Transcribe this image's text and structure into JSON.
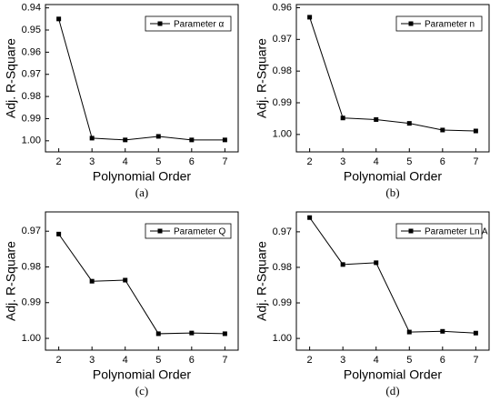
{
  "chart_data": [
    {
      "type": "line",
      "caption": "(a)",
      "xlabel": "Polynomial Order",
      "ylabel": "Adj. R-Square",
      "x": [
        2,
        3,
        4,
        5,
        6,
        7
      ],
      "xlim": [
        1.6,
        7.4
      ],
      "xticks": [
        2,
        3,
        4,
        5,
        6,
        7
      ],
      "ylim": [
        1.005,
        0.9385
      ],
      "yticks": [
        0.94,
        0.95,
        0.96,
        0.97,
        0.98,
        0.99,
        {
          "value": 1,
          "label": "1.00"
        }
      ],
      "legend": "upper right",
      "series": [
        {
          "name": "Parameter α",
          "color": "#000000",
          "values": [
            0.945,
            0.9988,
            0.9996,
            0.998,
            0.9996,
            0.9996
          ]
        }
      ]
    },
    {
      "type": "line",
      "caption": "(b)",
      "xlabel": "Polynomial Order",
      "ylabel": "Adj. R-Square",
      "x": [
        2,
        3,
        4,
        5,
        6,
        7
      ],
      "xlim": [
        1.6,
        7.4
      ],
      "xticks": [
        2,
        3,
        4,
        5,
        6,
        7
      ],
      "ylim": [
        1.0055,
        0.959
      ],
      "yticks": [
        0.96,
        0.97,
        0.98,
        0.99,
        {
          "value": 1,
          "label": "1.00"
        }
      ],
      "legend": "upper right",
      "series": [
        {
          "name": "Parameter n",
          "color": "#000000",
          "values": [
            0.963,
            0.9948,
            0.9953,
            0.9965,
            0.9986,
            0.9989
          ]
        }
      ]
    },
    {
      "type": "line",
      "caption": "(c)",
      "xlabel": "Polynomial Order",
      "ylabel": "Adj. R-Square",
      "x": [
        2,
        3,
        4,
        5,
        6,
        7
      ],
      "xlim": [
        1.6,
        7.4
      ],
      "xticks": [
        2,
        3,
        4,
        5,
        6,
        7
      ],
      "ylim": [
        1.0033,
        0.9646
      ],
      "yticks": [
        0.97,
        0.98,
        0.99,
        {
          "value": 1,
          "label": "1.00"
        }
      ],
      "legend": "upper right",
      "series": [
        {
          "name": "Parameter Q",
          "color": "#000000",
          "values": [
            0.9708,
            0.984,
            0.9837,
            0.9987,
            0.9985,
            0.9987
          ]
        }
      ]
    },
    {
      "type": "line",
      "caption": "(d)",
      "xlabel": "Polynomial Order",
      "ylabel": "Adj. R-Square",
      "x": [
        2,
        3,
        4,
        5,
        6,
        7
      ],
      "xlim": [
        1.6,
        7.4
      ],
      "xticks": [
        2,
        3,
        4,
        5,
        6,
        7
      ],
      "ylim": [
        1.0033,
        0.9644
      ],
      "yticks": [
        0.97,
        0.98,
        0.99,
        {
          "value": 1,
          "label": "1.00"
        }
      ],
      "legend": "upper right",
      "series": [
        {
          "name": "Parameter Ln A",
          "color": "#000000",
          "values": [
            0.966,
            0.9792,
            0.9787,
            0.9982,
            0.998,
            0.9985
          ]
        }
      ]
    }
  ]
}
